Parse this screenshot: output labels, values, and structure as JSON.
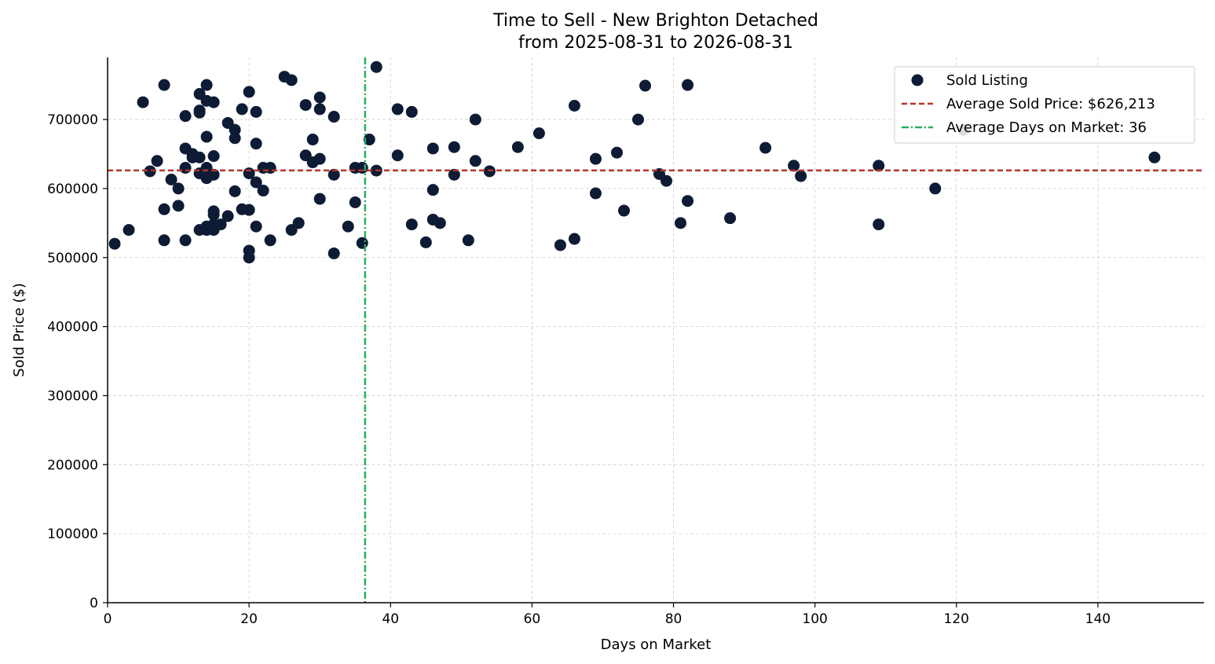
{
  "chart_data": {
    "type": "scatter",
    "title_line1": "Time to Sell - New Brighton Detached",
    "title_line2": "from 2025-08-31 to 2026-08-31",
    "xlabel": "Days on Market",
    "ylabel": "Sold Price ($)",
    "xlim": [
      0,
      155
    ],
    "ylim": [
      0,
      790000
    ],
    "x_ticks": [
      0,
      20,
      40,
      60,
      80,
      100,
      120,
      140
    ],
    "y_ticks": [
      0,
      100000,
      200000,
      300000,
      400000,
      500000,
      600000,
      700000
    ],
    "grid": true,
    "legend_placement": "top-right",
    "colors": {
      "points": "#0d1b35",
      "avg_price_line": "#b5332a",
      "avg_days_line": "#27ae60"
    },
    "series": [
      {
        "name": "Sold Listing",
        "points": [
          [
            1,
            520000
          ],
          [
            3,
            540000
          ],
          [
            5,
            725000
          ],
          [
            6,
            625000
          ],
          [
            7,
            640000
          ],
          [
            8,
            750000
          ],
          [
            8,
            570000
          ],
          [
            8,
            525000
          ],
          [
            9,
            613000
          ],
          [
            10,
            600000
          ],
          [
            10,
            575000
          ],
          [
            11,
            705000
          ],
          [
            11,
            658000
          ],
          [
            11,
            630000
          ],
          [
            11,
            525000
          ],
          [
            12,
            650000
          ],
          [
            12,
            645000
          ],
          [
            13,
            737000
          ],
          [
            13,
            713000
          ],
          [
            13,
            710000
          ],
          [
            13,
            645000
          ],
          [
            13,
            622000
          ],
          [
            13,
            540000
          ],
          [
            14,
            750000
          ],
          [
            14,
            727000
          ],
          [
            14,
            675000
          ],
          [
            14,
            630000
          ],
          [
            14,
            620000
          ],
          [
            14,
            615000
          ],
          [
            14,
            545000
          ],
          [
            14,
            540000
          ],
          [
            15,
            725000
          ],
          [
            15,
            647000
          ],
          [
            15,
            620000
          ],
          [
            15,
            567000
          ],
          [
            15,
            562000
          ],
          [
            15,
            548000
          ],
          [
            15,
            540000
          ],
          [
            16,
            548000
          ],
          [
            17,
            695000
          ],
          [
            17,
            560000
          ],
          [
            18,
            685000
          ],
          [
            18,
            673000
          ],
          [
            18,
            596000
          ],
          [
            19,
            715000
          ],
          [
            19,
            570000
          ],
          [
            20,
            740000
          ],
          [
            20,
            622000
          ],
          [
            20,
            569000
          ],
          [
            20,
            510000
          ],
          [
            20,
            500000
          ],
          [
            21,
            711000
          ],
          [
            21,
            665000
          ],
          [
            21,
            609000
          ],
          [
            21,
            545000
          ],
          [
            22,
            630000
          ],
          [
            22,
            597000
          ],
          [
            23,
            630000
          ],
          [
            23,
            525000
          ],
          [
            25,
            762000
          ],
          [
            26,
            757000
          ],
          [
            26,
            540000
          ],
          [
            27,
            550000
          ],
          [
            28,
            721000
          ],
          [
            28,
            648000
          ],
          [
            29,
            671000
          ],
          [
            29,
            638000
          ],
          [
            30,
            732000
          ],
          [
            30,
            715000
          ],
          [
            30,
            643000
          ],
          [
            30,
            585000
          ],
          [
            32,
            704000
          ],
          [
            32,
            620000
          ],
          [
            32,
            506000
          ],
          [
            34,
            545000
          ],
          [
            35,
            630000
          ],
          [
            35,
            580000
          ],
          [
            36,
            630000
          ],
          [
            36,
            521000
          ],
          [
            37,
            671000
          ],
          [
            38,
            776000
          ],
          [
            38,
            626000
          ],
          [
            41,
            715000
          ],
          [
            41,
            648000
          ],
          [
            43,
            711000
          ],
          [
            43,
            548000
          ],
          [
            45,
            522000
          ],
          [
            46,
            658000
          ],
          [
            46,
            598000
          ],
          [
            46,
            555000
          ],
          [
            47,
            550000
          ],
          [
            49,
            660000
          ],
          [
            49,
            620000
          ],
          [
            51,
            525000
          ],
          [
            52,
            700000
          ],
          [
            52,
            640000
          ],
          [
            54,
            625000
          ],
          [
            58,
            660000
          ],
          [
            61,
            680000
          ],
          [
            64,
            518000
          ],
          [
            66,
            720000
          ],
          [
            66,
            527000
          ],
          [
            69,
            643000
          ],
          [
            69,
            593000
          ],
          [
            72,
            652000
          ],
          [
            73,
            568000
          ],
          [
            75,
            700000
          ],
          [
            76,
            749000
          ],
          [
            78,
            621000
          ],
          [
            79,
            611000
          ],
          [
            81,
            550000
          ],
          [
            82,
            750000
          ],
          [
            82,
            582000
          ],
          [
            88,
            557000
          ],
          [
            93,
            659000
          ],
          [
            97,
            633000
          ],
          [
            98,
            618000
          ],
          [
            109,
            633000
          ],
          [
            109,
            548000
          ],
          [
            117,
            600000
          ],
          [
            121,
            685000
          ],
          [
            148,
            645000
          ]
        ]
      }
    ],
    "reference_lines": [
      {
        "orientation": "horizontal",
        "value": 626213,
        "label": "Average Sold Price: $626,213",
        "style": "dashed"
      },
      {
        "orientation": "vertical",
        "value": 36.4,
        "label": "Average Days on Market: 36",
        "style": "dash-dot"
      }
    ]
  }
}
